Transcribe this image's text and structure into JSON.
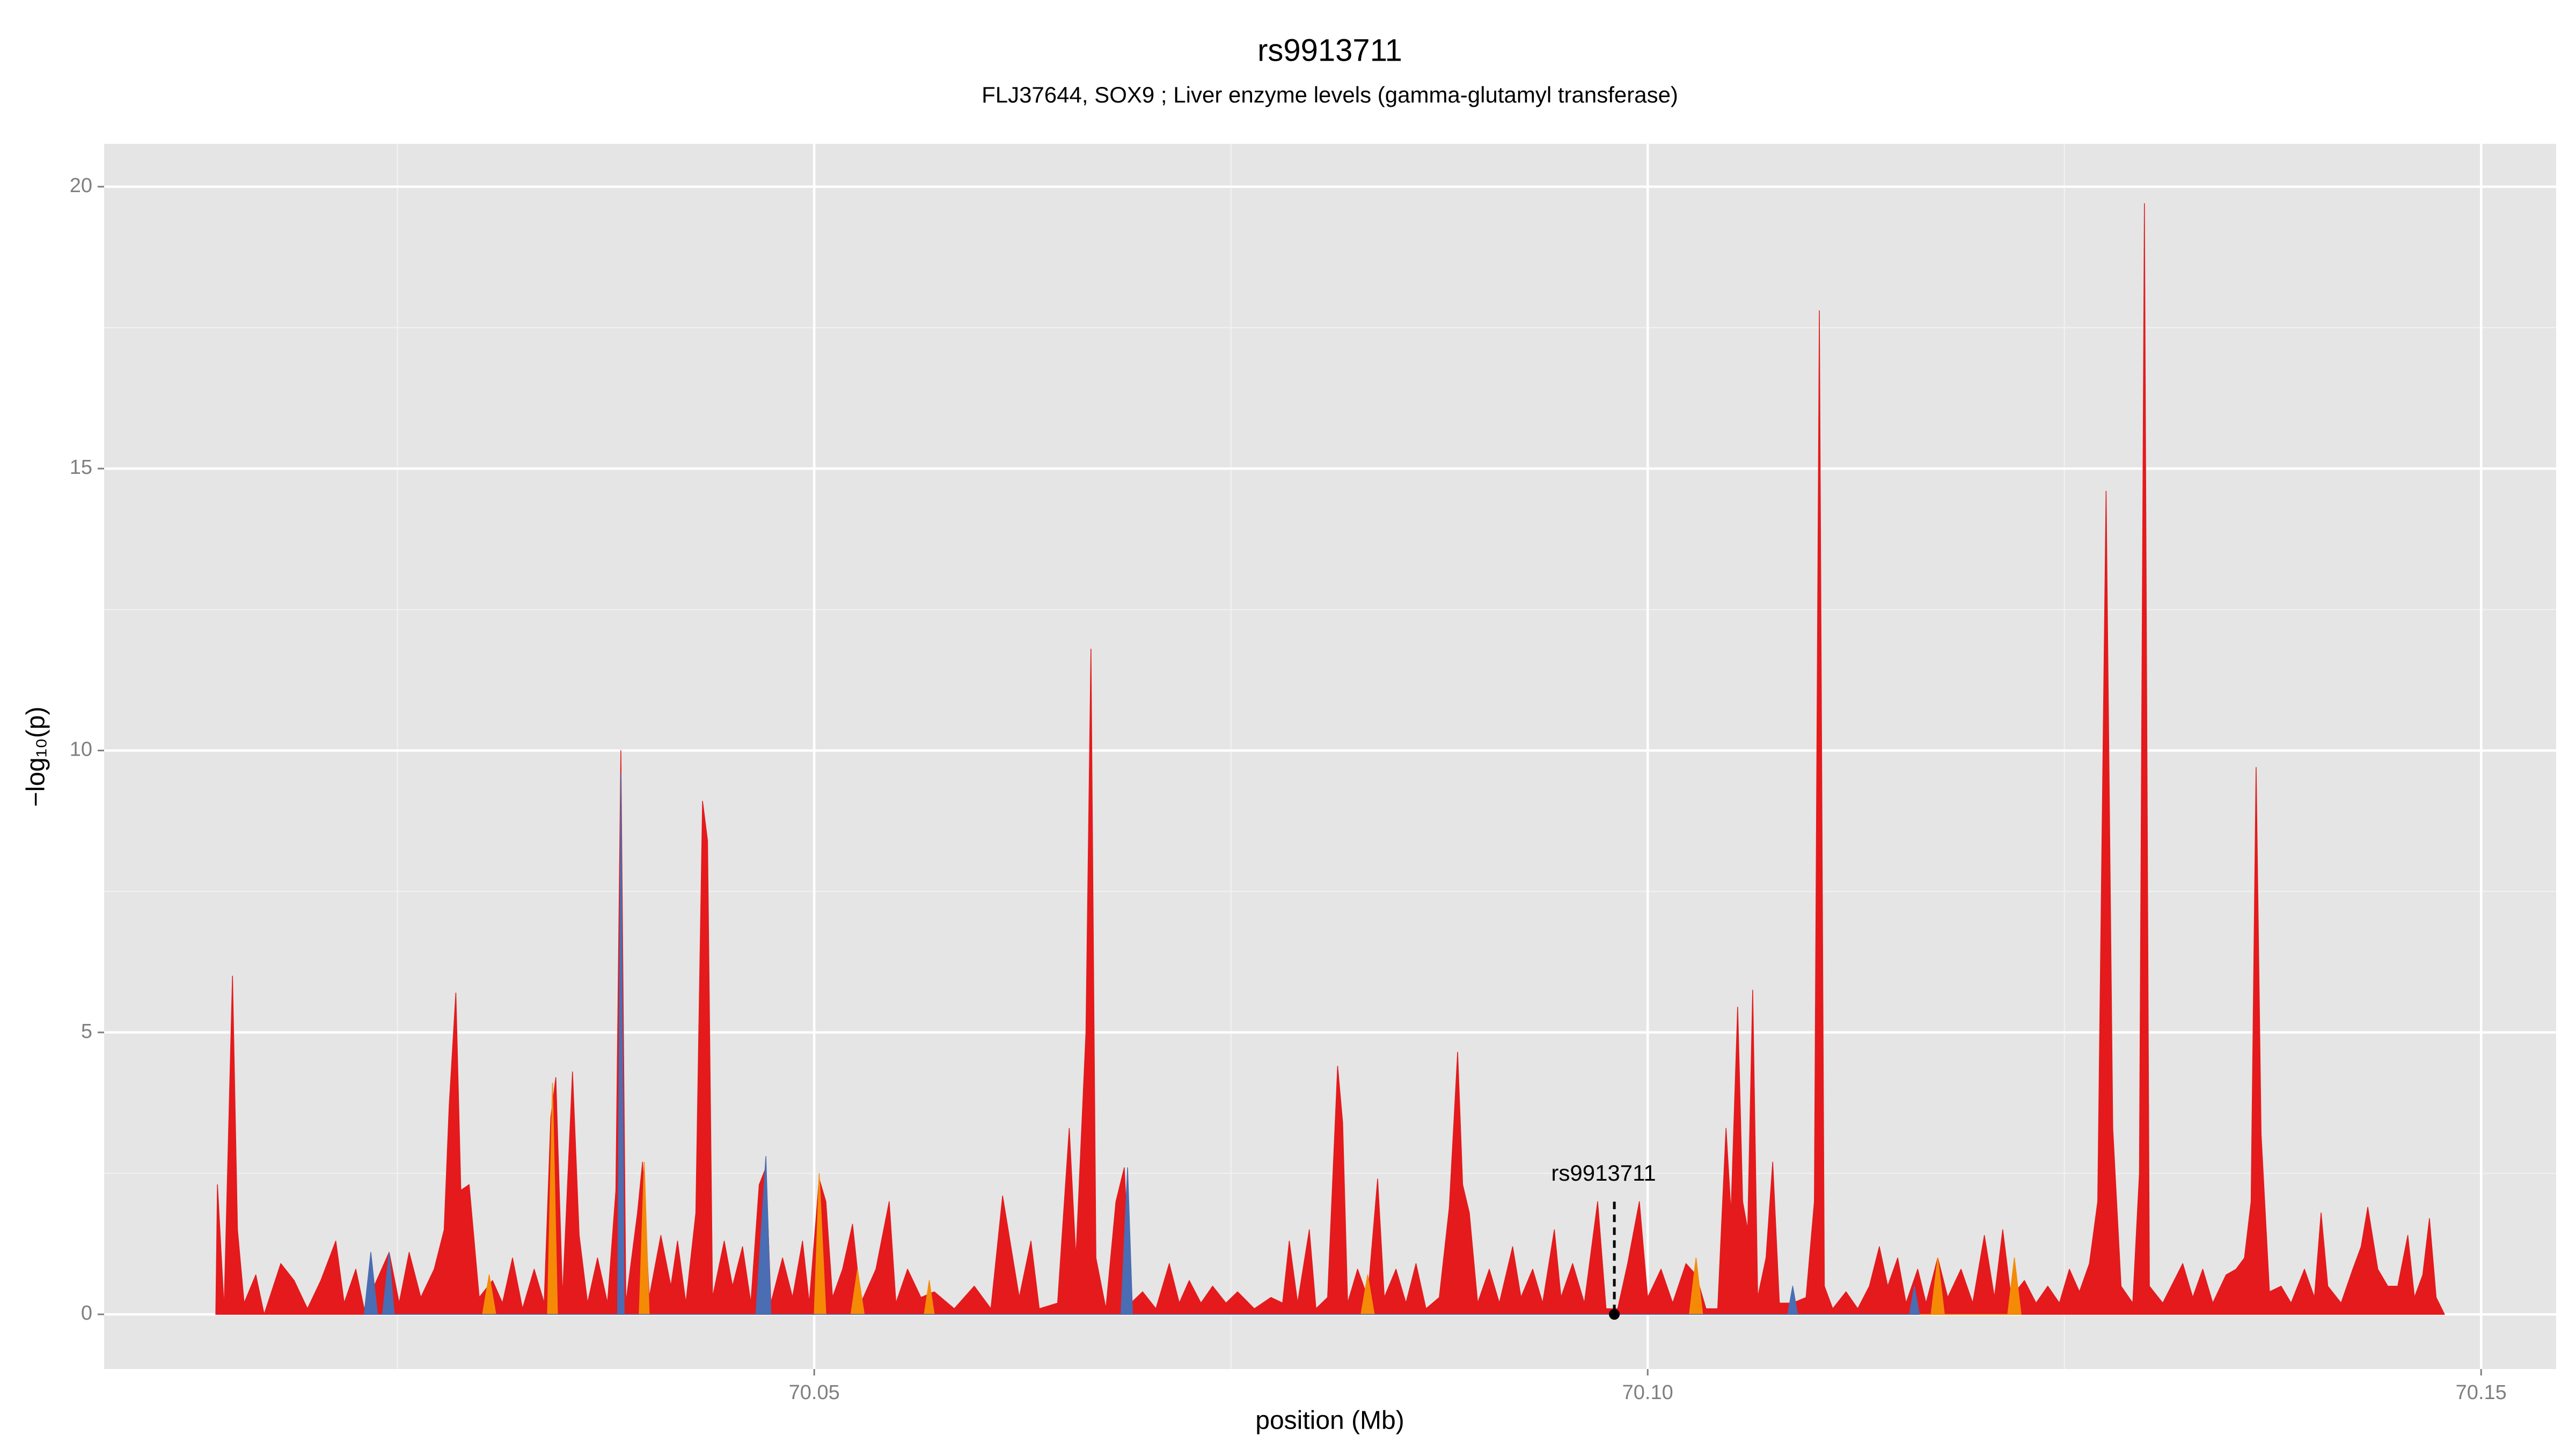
{
  "chart_data": {
    "type": "area",
    "title": "rs9913711",
    "subtitle": "FLJ37644, SOX9 ; Liver enzyme levels (gamma-glutamyl transferase)",
    "xlabel": "position (Mb)",
    "ylabel": "−log₁₀(p)",
    "xlim": [
      70.0074,
      70.1545
    ],
    "ylim": [
      -0.97,
      20.76
    ],
    "xticks": [
      70.05,
      {
        "value": 70.1,
        "label": "70.10"
      },
      70.15
    ],
    "yticks": [
      0,
      5,
      10,
      15,
      20
    ],
    "xminorticks": [
      70.025,
      70.075,
      70.125
    ],
    "yminorticks": [
      2.5,
      7.5,
      12.5,
      17.5
    ],
    "grid": true,
    "background": "#e5e5e5",
    "series": [
      {
        "color": "#e41a1c",
        "x": [
          70.0141,
          70.0142,
          70.0146,
          70.0151,
          70.0154,
          70.0158,
          70.0165,
          70.017,
          70.018,
          70.0188,
          70.0196,
          70.0204,
          70.0213,
          70.0218,
          70.0225,
          70.023,
          70.0245,
          70.0251,
          70.0257,
          70.0264,
          70.0272,
          70.0278,
          70.0281,
          70.0285,
          70.0288,
          70.0293,
          70.0299,
          70.0307,
          70.0313,
          70.0319,
          70.0325,
          70.0332,
          70.0338,
          70.0342,
          70.0345,
          70.0349,
          70.0355,
          70.0359,
          70.0364,
          70.037,
          70.0376,
          70.0381,
          70.0384,
          70.0387,
          70.0394,
          70.0397,
          70.0401,
          70.0408,
          70.0414,
          70.0418,
          70.0423,
          70.0429,
          70.0433,
          70.0436,
          70.0439,
          70.0446,
          70.0451,
          70.0457,
          70.0462,
          70.0467,
          70.0471,
          70.0474,
          70.0481,
          70.0487,
          70.0493,
          70.0497,
          70.0503,
          70.0507,
          70.0511,
          70.0517,
          70.0523,
          70.0528,
          70.0537,
          70.0545,
          70.0549,
          70.0556,
          70.0564,
          70.0572,
          70.0584,
          70.0596,
          70.0606,
          70.0613,
          70.0618,
          70.0623,
          70.063,
          70.0635,
          70.0646,
          70.0653,
          70.0657,
          70.0663,
          70.0666,
          70.0669,
          70.0675,
          70.0681,
          70.0686,
          70.069,
          70.0697,
          70.0705,
          70.0713,
          70.0719,
          70.0725,
          70.0732,
          70.0739,
          70.0747,
          70.0754,
          70.0764,
          70.0774,
          70.0781,
          70.0785,
          70.079,
          70.0797,
          70.0801,
          70.0808,
          70.0814,
          70.0817,
          70.082,
          70.0826,
          70.0832,
          70.0838,
          70.0842,
          70.0849,
          70.0855,
          70.0861,
          70.0867,
          70.0875,
          70.0881,
          70.0886,
          70.0889,
          70.0893,
          70.0898,
          70.0905,
          70.0911,
          70.0919,
          70.0924,
          70.0931,
          70.0937,
          70.0944,
          70.0948,
          70.0955,
          70.0962,
          70.097,
          70.0975,
          70.0982,
          70.0988,
          70.0995,
          70.1,
          70.1008,
          70.1015,
          70.1023,
          70.1029,
          70.1035,
          70.1042,
          70.1047,
          70.105,
          70.1054,
          70.1057,
          70.106,
          70.1063,
          70.1066,
          70.1071,
          70.1075,
          70.1079,
          70.1087,
          70.1095,
          70.11,
          70.1103,
          70.1106,
          70.1111,
          70.1119,
          70.1126,
          70.1133,
          70.1139,
          70.1144,
          70.115,
          70.1155,
          70.1162,
          70.1167,
          70.1174,
          70.118,
          70.1188,
          70.1195,
          70.1202,
          70.1208,
          70.1213,
          70.1218,
          70.1226,
          70.1233,
          70.124,
          70.1247,
          70.1253,
          70.1259,
          70.1265,
          70.127,
          70.1275,
          70.1279,
          70.1284,
          70.1291,
          70.1295,
          70.1298,
          70.1301,
          70.1309,
          70.1321,
          70.1327,
          70.1333,
          70.1339,
          70.1347,
          70.1353,
          70.1358,
          70.1362,
          70.1365,
          70.1368,
          70.1373,
          70.138,
          70.1386,
          70.1394,
          70.14,
          70.1404,
          70.1408,
          70.1416,
          70.1423,
          70.1428,
          70.1432,
          70.1438,
          70.1444,
          70.145,
          70.1456,
          70.146,
          70.1465,
          70.1469,
          70.1473,
          70.1478
        ],
        "values": [
          0,
          2.3,
          0.1,
          6.0,
          1.5,
          0.2,
          0.7,
          0,
          0.9,
          0.6,
          0.1,
          0.6,
          1.3,
          0.2,
          0.8,
          0.1,
          1.1,
          0.2,
          1.1,
          0.3,
          0.8,
          1.5,
          3.7,
          5.7,
          2.2,
          2.3,
          0.3,
          0.6,
          0.2,
          1.0,
          0.1,
          0.8,
          0.2,
          3.5,
          4.2,
          0.3,
          4.3,
          1.4,
          0.2,
          1.0,
          0.2,
          2.2,
          10.0,
          0.2,
          1.8,
          2.7,
          0.3,
          1.4,
          0.5,
          1.3,
          0.2,
          1.8,
          9.1,
          8.4,
          0.3,
          1.3,
          0.5,
          1.2,
          0.2,
          2.3,
          2.6,
          0.2,
          1.0,
          0.3,
          1.3,
          0.2,
          2.4,
          2.0,
          0.3,
          0.8,
          1.6,
          0.2,
          0.8,
          2.0,
          0.2,
          0.8,
          0.3,
          0.4,
          0.1,
          0.5,
          0.1,
          2.1,
          1.2,
          0.3,
          1.3,
          0.1,
          0.2,
          3.3,
          1.0,
          5.0,
          11.8,
          1.0,
          0.1,
          2.0,
          2.6,
          0.2,
          0.4,
          0.1,
          0.9,
          0.2,
          0.6,
          0.2,
          0.5,
          0.2,
          0.4,
          0.1,
          0.3,
          0.2,
          1.3,
          0.2,
          1.5,
          0.1,
          0.3,
          4.4,
          3.4,
          0.2,
          0.8,
          0.3,
          2.4,
          0.3,
          0.8,
          0.2,
          0.9,
          0.1,
          0.3,
          1.9,
          4.65,
          2.3,
          1.8,
          0.2,
          0.8,
          0.2,
          1.2,
          0.3,
          0.8,
          0.2,
          1.5,
          0.3,
          0.9,
          0.2,
          2.0,
          0.1,
          0.1,
          0.9,
          2.0,
          0.3,
          0.8,
          0.2,
          0.9,
          0.7,
          0.1,
          0.1,
          3.3,
          1.8,
          5.45,
          2.0,
          1.5,
          5.75,
          0.3,
          1.0,
          2.7,
          0.2,
          0.2,
          0.3,
          2.0,
          17.8,
          0.5,
          0.1,
          0.4,
          0.1,
          0.5,
          1.2,
          0.5,
          1.0,
          0.2,
          0.8,
          0.2,
          1.0,
          0.3,
          0.8,
          0.2,
          1.4,
          0.3,
          1.5,
          0.3,
          0.6,
          0.2,
          0.5,
          0.2,
          0.8,
          0.4,
          0.9,
          2.0,
          14.6,
          3.3,
          0.5,
          0.2,
          2.5,
          19.7,
          0.5,
          0.2,
          0.9,
          0.3,
          0.8,
          0.2,
          0.7,
          0.8,
          1.0,
          2.0,
          9.7,
          3.2,
          0.4,
          0.5,
          0.2,
          0.8,
          0.3,
          1.8,
          0.5,
          0.2,
          0.8,
          1.2,
          1.9,
          0.8,
          0.5,
          0.5,
          1.4,
          0.3,
          0.7,
          1.7,
          0.3,
          0
        ]
      },
      {
        "color": "#f58a07",
        "x": [
          70.0301,
          70.0305,
          70.0309,
          70.034,
          70.0343,
          70.0346,
          70.0395,
          70.0398,
          70.0401,
          70.05,
          70.0503,
          70.0507,
          70.0522,
          70.0526,
          70.053,
          70.0566,
          70.0569,
          70.0572,
          70.0828,
          70.0832,
          70.0836,
          70.1025,
          70.1029,
          70.1033,
          70.117,
          70.1174,
          70.1178,
          70.1216,
          70.122,
          70.1224
        ],
        "values": [
          0,
          0.7,
          0,
          0,
          4.1,
          0,
          0,
          2.7,
          0,
          0,
          2.5,
          0,
          0,
          0.8,
          0,
          0,
          0.6,
          0,
          0,
          0.7,
          0,
          0,
          1.0,
          0,
          0,
          1.0,
          0,
          0,
          1.0,
          0
        ]
      },
      {
        "color": "#4a6db3",
        "x": [
          70.023,
          70.0234,
          70.0238,
          70.0241,
          70.0245,
          70.0248,
          70.0382,
          70.0384,
          70.0386,
          70.0465,
          70.0471,
          70.0474,
          70.0684,
          70.0688,
          70.0691,
          70.1084,
          70.1087,
          70.109,
          70.1157,
          70.116,
          70.1163
        ],
        "values": [
          0,
          1.1,
          0,
          0,
          1.1,
          0,
          0,
          9.6,
          0,
          0,
          2.8,
          0,
          0,
          2.6,
          0,
          0,
          0.5,
          0,
          0,
          0.5,
          0
        ]
      }
    ],
    "annotation": {
      "text": "rs9913711",
      "x": 70.098,
      "y": 0
    }
  }
}
